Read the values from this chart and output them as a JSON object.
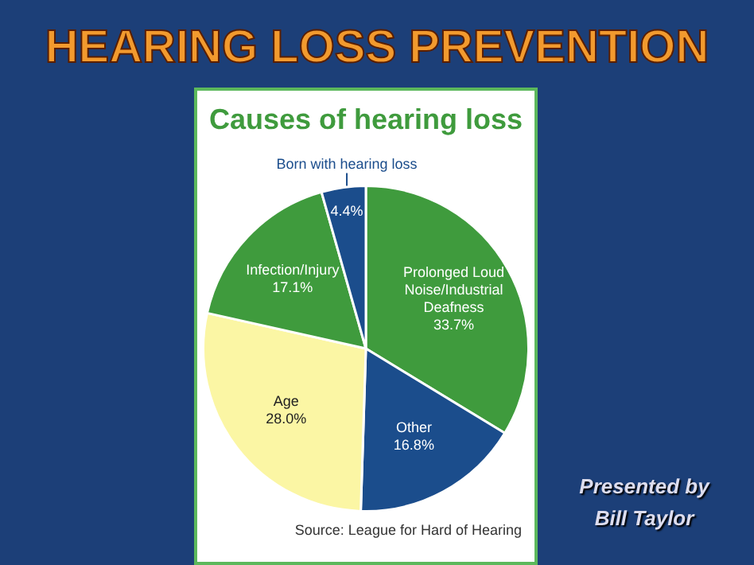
{
  "chart_data": {
    "type": "pie",
    "title": "HEARING LOSS PREVENTION",
    "subtitle": "Causes of hearing loss",
    "categories": [
      "Prolonged Loud Noise/Industrial Deafness",
      "Other",
      "Age",
      "Infection/Injury",
      "Born with hearing loss"
    ],
    "values": [
      33.7,
      16.8,
      28.0,
      17.1,
      4.4
    ],
    "value_labels": [
      "33.7%",
      "16.8%",
      "28.0%",
      "17.1%",
      "4.4%"
    ],
    "colors": [
      "#3f9b3d",
      "#1b4d8c",
      "#fbf6a4",
      "#3f9b3d",
      "#1b4d8c"
    ],
    "annotations": [
      "Source: League for Hard of Hearing",
      "Presented by",
      "Bill Taylor"
    ],
    "legend": false
  }
}
